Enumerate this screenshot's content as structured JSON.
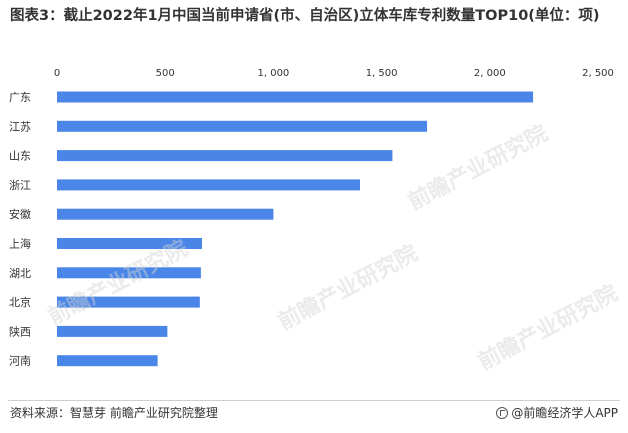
{
  "chart_data": {
    "type": "bar",
    "orientation": "horizontal",
    "title": "图表3：截止2022年1月中国当前申请省(市、自治区)立体车库专利数量TOP10(单位：项)",
    "categories": [
      "广东",
      "江苏",
      "山东",
      "浙江",
      "安徽",
      "上海",
      "湖北",
      "北京",
      "陕西",
      "河南"
    ],
    "values": [
      2200,
      1710,
      1550,
      1400,
      1000,
      670,
      665,
      660,
      510,
      465
    ],
    "xlim": [
      0,
      2500
    ],
    "xticks": [
      0,
      500,
      1000,
      1500,
      2000,
      2500
    ],
    "xtick_labels": [
      "0",
      "500",
      "1, 000",
      "1, 500",
      "2, 000",
      "2, 500"
    ],
    "xaxis_position": "top",
    "grid": false,
    "legend": "none",
    "bar_color": "#4a86e8"
  },
  "watermark": "前瞻产业研究院",
  "footer": {
    "source": "资料来源：智慧芽 前瞻产业研究院整理",
    "credit": "@前瞻经济学人APP"
  }
}
